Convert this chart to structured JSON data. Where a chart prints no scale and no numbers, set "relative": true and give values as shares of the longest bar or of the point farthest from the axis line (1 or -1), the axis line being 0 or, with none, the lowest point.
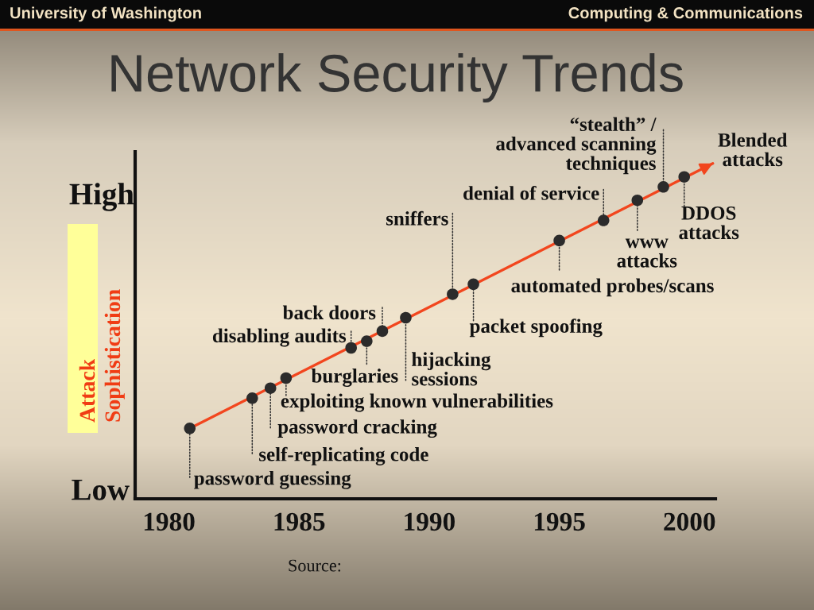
{
  "chart_data": {
    "type": "scatter",
    "title": "Network Security Trends",
    "ylabel": "Attack\nSophistication",
    "relative": true,
    "xlim": [
      1978.7,
      2001.0
    ],
    "xticks": [
      1980,
      1985,
      1990,
      1995,
      2000
    ],
    "series": [
      {
        "type": "scatter",
        "marker": "circle",
        "color": "#2b2b2b",
        "x": [
          1980.8,
          1983.2,
          1983.9,
          1984.5,
          1987.0,
          1987.6,
          1988.2,
          1989.1,
          1990.9,
          1991.7,
          1995.0,
          1996.7,
          1998.0,
          1999.0,
          1999.8
        ],
        "values": [
          0.21,
          0.3,
          0.33,
          0.36,
          0.45,
          0.47,
          0.5,
          0.54,
          0.61,
          0.64,
          0.77,
          0.83,
          0.89,
          0.93,
          0.96
        ]
      },
      {
        "type": "line",
        "color": "#f2461e",
        "x": [
          1980.8,
          2000.9
        ],
        "values": [
          0.21,
          1
        ]
      }
    ],
    "annotations": [
      "University of Washington",
      "Computing & Communications",
      "High",
      "Low",
      {
        "text": "password guessing",
        "x": 1980.8,
        "y": 0.21
      },
      {
        "text": "self-replicating code",
        "x": 1983.2,
        "y": 0.3
      },
      {
        "text": "password cracking",
        "x": 1983.9,
        "y": 0.33
      },
      {
        "text": "exploiting known vulnerabilities",
        "x": 1984.5,
        "y": 0.36
      },
      {
        "text": "disabling audits",
        "x": 1987.0,
        "y": 0.45
      },
      {
        "text": "burglaries",
        "x": 1987.6,
        "y": 0.47
      },
      {
        "text": "back doors",
        "x": 1988.2,
        "y": 0.5
      },
      {
        "text": "hijacking\nsessions",
        "x": 1989.1,
        "y": 0.54
      },
      {
        "text": "sniffers",
        "x": 1990.9,
        "y": 0.61
      },
      {
        "text": "packet spoofing",
        "x": 1991.7,
        "y": 0.64
      },
      {
        "text": "automated probes/scans",
        "x": 1995.0,
        "y": 0.77
      },
      {
        "text": "denial of service",
        "x": 1996.7,
        "y": 0.83
      },
      {
        "text": "www\nattacks",
        "x": 1998.0,
        "y": 0.89
      },
      {
        "text": "“stealth” /\nadvanced scanning\ntechniques",
        "x": 1999.0,
        "y": 0.93
      },
      {
        "text": "DDOS\nattacks",
        "x": 1999.8,
        "y": 0.96
      },
      {
        "text": "Blended\nattacks",
        "x": 2000.9,
        "y": 1
      },
      "Source:"
    ]
  }
}
